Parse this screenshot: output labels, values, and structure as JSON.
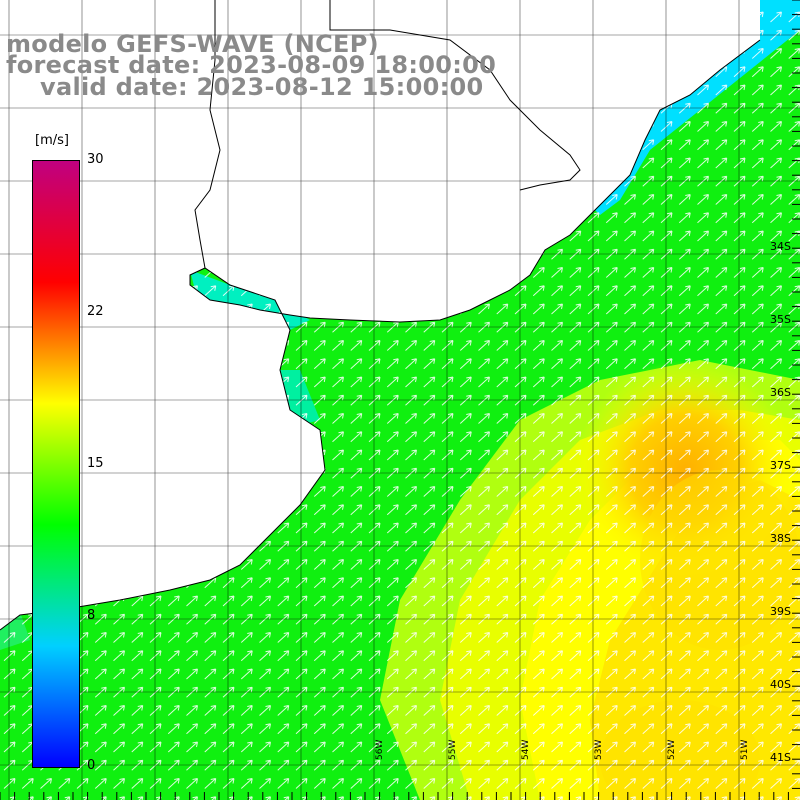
{
  "title": {
    "line1": "modelo GEFS-WAVE (NCEP)",
    "line2": "forecast date: 2023-08-09 18:00:00",
    "line3": "valid date: 2023-08-12 15:00:00"
  },
  "colorbar": {
    "unit": "[m/s]",
    "ticks": [
      "30",
      "22",
      "15",
      "8",
      "0"
    ],
    "gradient": [
      "#0000ff",
      "#00d0ff",
      "#00ff00",
      "#ffff00",
      "#ff0000",
      "#c00080"
    ]
  },
  "map": {
    "lat_labels": [
      "34S",
      "35S",
      "36S",
      "37S",
      "38S",
      "39S",
      "40S",
      "41S"
    ],
    "lon_labels": [
      "56W",
      "55W",
      "54W",
      "53W",
      "52W",
      "51W"
    ],
    "wind_direction": "from southwest",
    "land_color": "#ffffff",
    "ocean_colors": {
      "low": "#00e0ff",
      "mid": "#00ff00",
      "high": "#ffff00",
      "peak": "#ffbb00"
    }
  }
}
